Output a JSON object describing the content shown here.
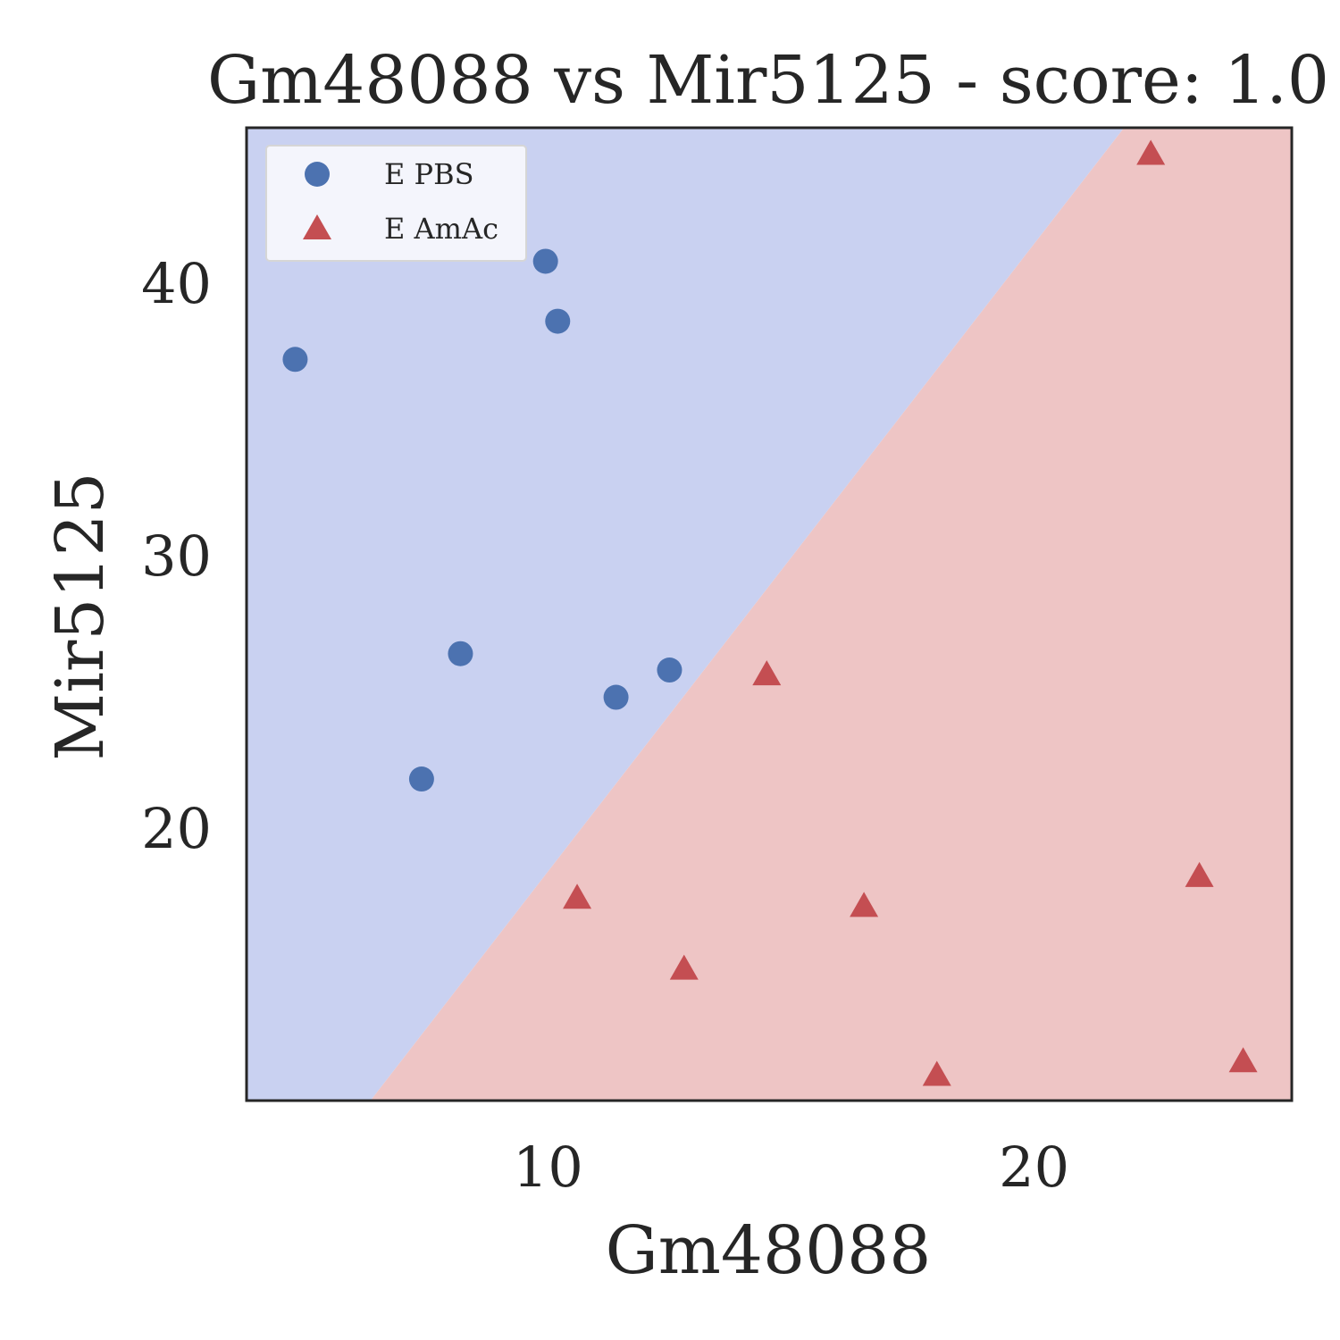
{
  "chart_data": {
    "type": "scatter",
    "title": "Gm48088 vs Mir5125 - score: 1.0",
    "xlabel": "Gm48088",
    "ylabel": "Mir5125",
    "xlim": [
      3.8,
      25.3
    ],
    "ylim": [
      10.0,
      45.7
    ],
    "xticks": [
      10,
      20
    ],
    "yticks": [
      20,
      30,
      40
    ],
    "grid": false,
    "legend_position": "top-left",
    "decision_boundary": {
      "points": [
        [
          6.35,
          10.0
        ],
        [
          21.85,
          45.7
        ]
      ],
      "upper_left_class": "E PBS",
      "lower_right_class": "E AmAc"
    },
    "region_colors": {
      "E PBS": "#c9d1f1",
      "E AmAc": "#eec5c5"
    },
    "series": [
      {
        "name": "E PBS",
        "marker": "circle",
        "color": "#4c72b0",
        "points": [
          [
            4.8,
            37.2
          ],
          [
            7.4,
            21.8
          ],
          [
            8.2,
            26.4
          ],
          [
            9.95,
            40.8
          ],
          [
            10.2,
            38.6
          ],
          [
            11.4,
            24.8
          ],
          [
            12.5,
            25.8
          ]
        ]
      },
      {
        "name": "E AmAc",
        "marker": "triangle",
        "color": "#c44e52",
        "points": [
          [
            10.6,
            17.4
          ],
          [
            12.8,
            14.8
          ],
          [
            14.5,
            25.6
          ],
          [
            16.5,
            17.1
          ],
          [
            18.0,
            10.9
          ],
          [
            22.4,
            44.7
          ],
          [
            23.4,
            18.2
          ],
          [
            24.3,
            11.4
          ]
        ]
      }
    ]
  }
}
